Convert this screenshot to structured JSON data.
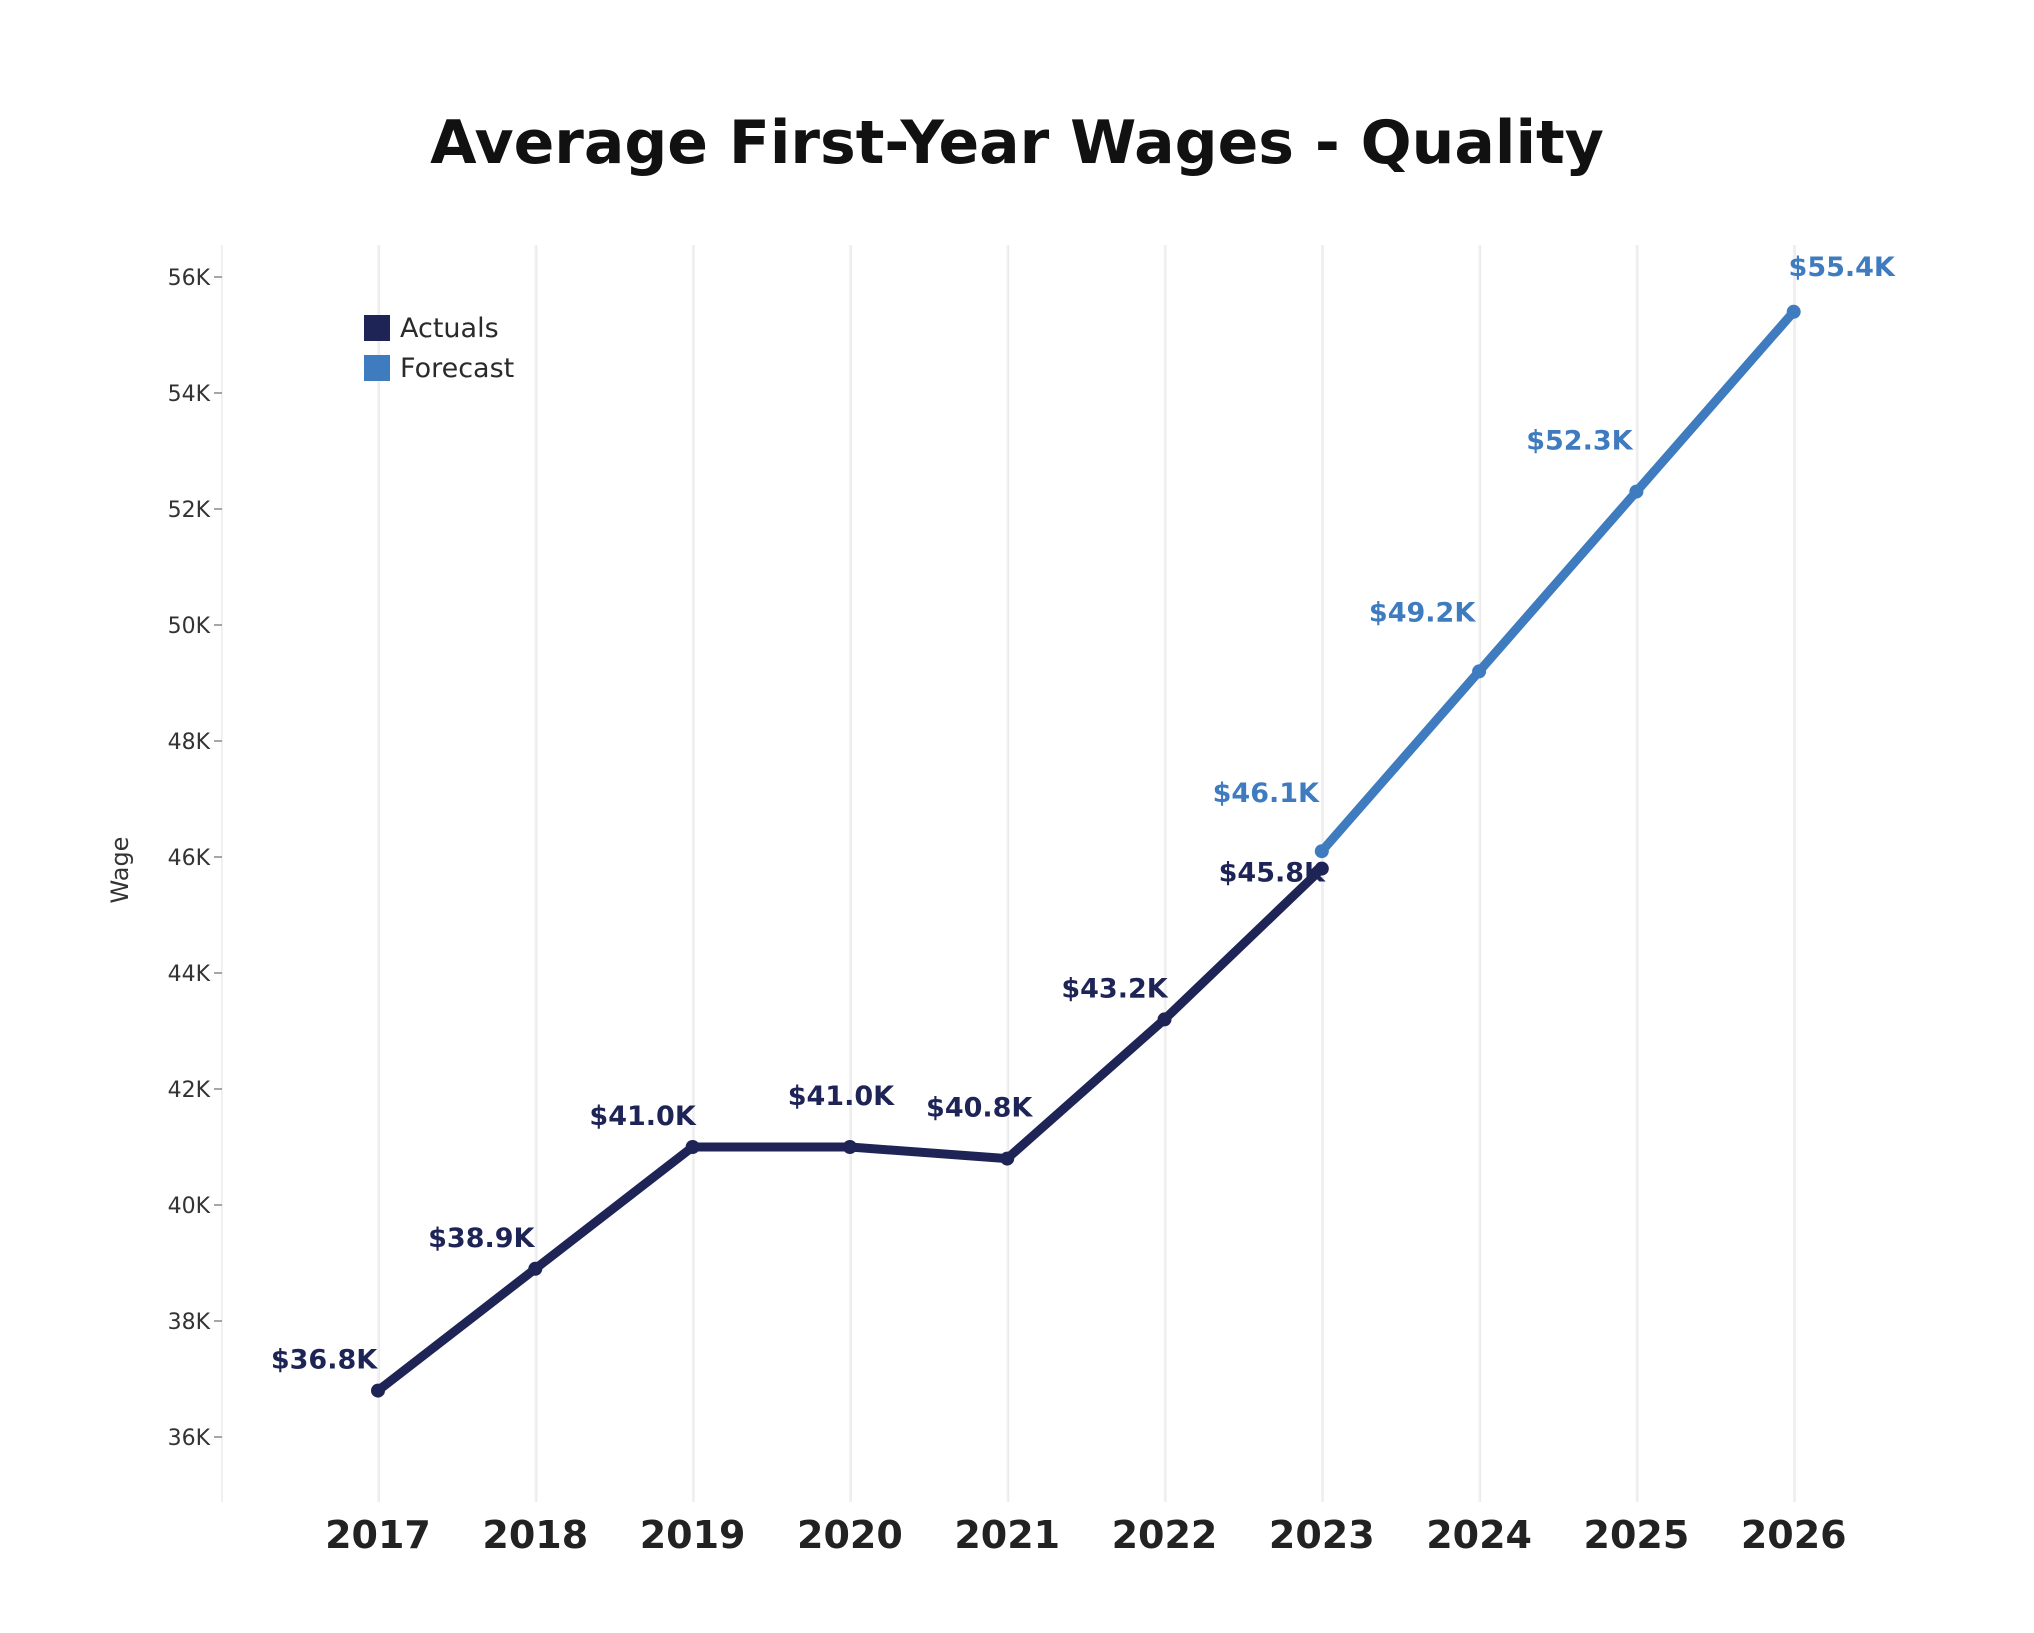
{
  "chart_data": {
    "type": "line",
    "title": "Average First-Year Wages - Quality",
    "ylabel": "Wage",
    "xlabel": "",
    "categories": [
      "2017",
      "2018",
      "2019",
      "2020",
      "2021",
      "2022",
      "2023",
      "2024",
      "2025",
      "2026"
    ],
    "ylim": [
      35000,
      56500
    ],
    "yticks": [
      {
        "value": 36000,
        "label": "36K"
      },
      {
        "value": 38000,
        "label": "38K"
      },
      {
        "value": 40000,
        "label": "40K"
      },
      {
        "value": 42000,
        "label": "42K"
      },
      {
        "value": 44000,
        "label": "44K"
      },
      {
        "value": 46000,
        "label": "46K"
      },
      {
        "value": 48000,
        "label": "48K"
      },
      {
        "value": 50000,
        "label": "50K"
      },
      {
        "value": 52000,
        "label": "52K"
      },
      {
        "value": 54000,
        "label": "54K"
      },
      {
        "value": 56000,
        "label": "56K"
      }
    ],
    "grid": {
      "vertical": true,
      "horizontal": false
    },
    "legend": {
      "position": "top-left",
      "entries": [
        {
          "name": "Actuals",
          "color": "#1e2456"
        },
        {
          "name": "Forecast",
          "color": "#3f7bbf"
        }
      ]
    },
    "series": [
      {
        "name": "Actuals",
        "color": "#1e2456",
        "points": [
          {
            "x": "2017",
            "y": 36800,
            "label": "$36.8K"
          },
          {
            "x": "2018",
            "y": 38900,
            "label": "$38.9K"
          },
          {
            "x": "2019",
            "y": 41000,
            "label": "$41.0K"
          },
          {
            "x": "2020",
            "y": 41000,
            "label": "$41.0K"
          },
          {
            "x": "2021",
            "y": 40800,
            "label": "$40.8K"
          },
          {
            "x": "2022",
            "y": 43200,
            "label": "$43.2K"
          },
          {
            "x": "2023",
            "y": 45800,
            "label": "$45.8K"
          }
        ]
      },
      {
        "name": "Forecast",
        "color": "#3f7bbf",
        "points": [
          {
            "x": "2023",
            "y": 46100,
            "label": "$46.1K"
          },
          {
            "x": "2024",
            "y": 49200,
            "label": "$49.2K"
          },
          {
            "x": "2025",
            "y": 52300,
            "label": "$52.3K"
          },
          {
            "x": "2026",
            "y": 55400,
            "label": "$55.4K"
          }
        ]
      }
    ]
  }
}
